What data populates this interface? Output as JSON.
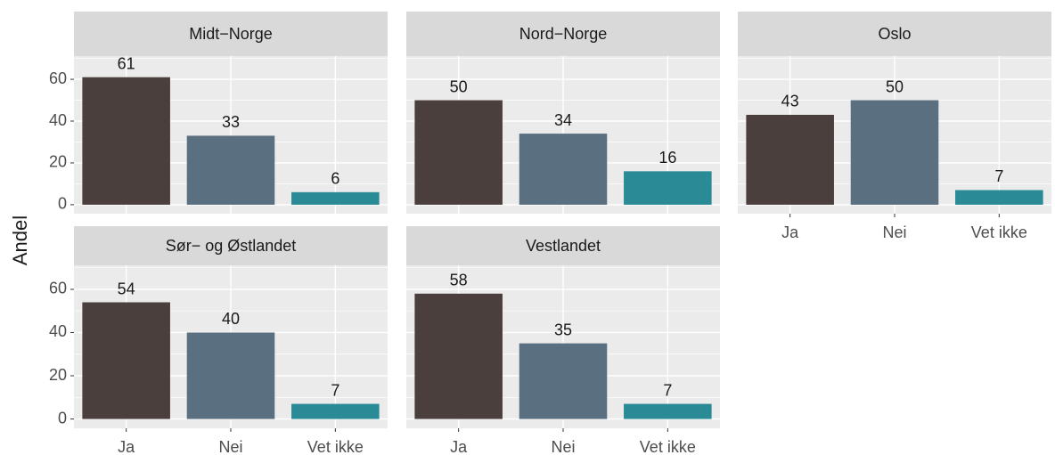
{
  "y_label": "Andel",
  "chart_data": [
    {
      "type": "bar",
      "title": "Midt−Norge",
      "categories": [
        "Ja",
        "Nei",
        "Vet ikke"
      ],
      "values": [
        61,
        33,
        6
      ],
      "colors": [
        "#4b3f3e",
        "#5a6f80",
        "#2a8a95"
      ],
      "ylim": [
        -4.3,
        71.1
      ],
      "yticks": [
        0,
        20,
        40,
        60
      ],
      "minor_yticks": [
        10,
        30,
        50,
        70
      ],
      "grid": true
    },
    {
      "type": "bar",
      "title": "Nord−Norge",
      "categories": [
        "Ja",
        "Nei",
        "Vet ikke"
      ],
      "values": [
        50,
        34,
        16
      ],
      "colors": [
        "#4b3f3e",
        "#5a6f80",
        "#2a8a95"
      ],
      "ylim": [
        -4.3,
        71.1
      ],
      "yticks": [
        0,
        20,
        40,
        60
      ],
      "minor_yticks": [
        10,
        30,
        50,
        70
      ],
      "grid": true
    },
    {
      "type": "bar",
      "title": "Oslo",
      "categories": [
        "Ja",
        "Nei",
        "Vet ikke"
      ],
      "values": [
        43,
        50,
        7
      ],
      "colors": [
        "#4b3f3e",
        "#5a6f80",
        "#2a8a95"
      ],
      "ylim": [
        -4.3,
        71.1
      ],
      "yticks": [
        0,
        20,
        40,
        60
      ],
      "minor_yticks": [
        10,
        30,
        50,
        70
      ],
      "grid": true
    },
    {
      "type": "bar",
      "title": "Sør− og Østlandet",
      "categories": [
        "Ja",
        "Nei",
        "Vet ikke"
      ],
      "values": [
        54,
        40,
        7
      ],
      "colors": [
        "#4b3f3e",
        "#5a6f80",
        "#2a8a95"
      ],
      "ylim": [
        -4.3,
        71.1
      ],
      "yticks": [
        0,
        20,
        40,
        60
      ],
      "minor_yticks": [
        10,
        30,
        50,
        70
      ],
      "grid": true
    },
    {
      "type": "bar",
      "title": "Vestlandet",
      "categories": [
        "Ja",
        "Nei",
        "Vet ikke"
      ],
      "values": [
        58,
        35,
        7
      ],
      "colors": [
        "#4b3f3e",
        "#5a6f80",
        "#2a8a95"
      ],
      "ylim": [
        -4.3,
        71.1
      ],
      "yticks": [
        0,
        20,
        40,
        60
      ],
      "minor_yticks": [
        10,
        30,
        50,
        70
      ],
      "grid": true
    }
  ]
}
